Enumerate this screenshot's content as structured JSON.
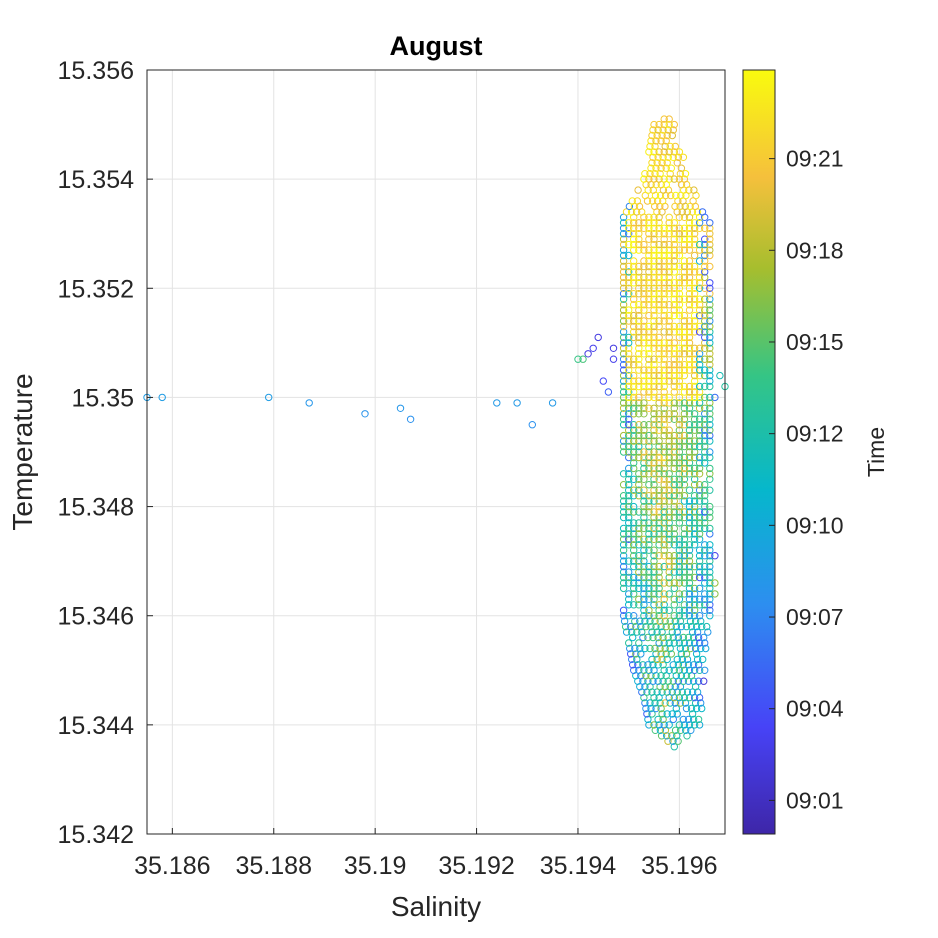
{
  "chart_data": {
    "type": "scatter",
    "title": "August",
    "xlabel": "Salinity",
    "ylabel": "Temperature",
    "xlim": [
      35.1855,
      35.1969
    ],
    "ylim": [
      15.342,
      15.356
    ],
    "grid": true,
    "x_ticks": [
      "35.186",
      "35.188",
      "35.19",
      "35.192",
      "35.194",
      "35.196"
    ],
    "y_ticks": [
      "15.342",
      "15.344",
      "15.346",
      "15.348",
      "15.35",
      "15.352",
      "15.354",
      "15.356"
    ],
    "colorbar": {
      "label": "Time",
      "tick_labels": [
        "09:01",
        "09:04",
        "09:07",
        "09:10",
        "09:12",
        "09:15",
        "09:18",
        "09:21"
      ],
      "colormap": "parula",
      "colors": [
        "#3e26a8",
        "#4743f7",
        "#2d8ef0",
        "#06b7cc",
        "#35c585",
        "#a6be2e",
        "#f5c03c",
        "#f9fb0e"
      ]
    },
    "outliers": [
      {
        "x": 35.1855,
        "y": 15.35,
        "t": 0.35
      },
      {
        "x": 35.1858,
        "y": 15.35,
        "t": 0.35
      },
      {
        "x": 35.1879,
        "y": 15.35,
        "t": 0.35
      },
      {
        "x": 35.1887,
        "y": 15.3499,
        "t": 0.33
      },
      {
        "x": 35.1898,
        "y": 15.3497,
        "t": 0.32
      },
      {
        "x": 35.1905,
        "y": 15.3498,
        "t": 0.33
      },
      {
        "x": 35.1907,
        "y": 15.3496,
        "t": 0.31
      },
      {
        "x": 35.1924,
        "y": 15.3499,
        "t": 0.34
      },
      {
        "x": 35.1928,
        "y": 15.3499,
        "t": 0.34
      },
      {
        "x": 35.1931,
        "y": 15.3495,
        "t": 0.31
      },
      {
        "x": 35.1935,
        "y": 15.3499,
        "t": 0.34
      },
      {
        "x": 35.194,
        "y": 15.3507,
        "t": 0.6
      },
      {
        "x": 35.1941,
        "y": 15.3507,
        "t": 0.62
      },
      {
        "x": 35.1942,
        "y": 15.3508,
        "t": 0.1
      },
      {
        "x": 35.1943,
        "y": 15.3509,
        "t": 0.12
      },
      {
        "x": 35.1944,
        "y": 15.3511,
        "t": 0.1
      },
      {
        "x": 35.1945,
        "y": 15.3503,
        "t": 0.15
      },
      {
        "x": 35.1946,
        "y": 15.3501,
        "t": 0.2
      },
      {
        "x": 35.1947,
        "y": 15.3507,
        "t": 0.12
      },
      {
        "x": 35.1947,
        "y": 15.3509,
        "t": 0.1
      },
      {
        "x": 35.1969,
        "y": 15.3502,
        "t": 0.55
      },
      {
        "x": 35.1968,
        "y": 15.3504,
        "t": 0.5
      },
      {
        "x": 35.1967,
        "y": 15.3471,
        "t": 0.12
      },
      {
        "x": 35.1967,
        "y": 15.3466,
        "t": 0.72
      },
      {
        "x": 35.1967,
        "y": 15.3464,
        "t": 0.7
      }
    ],
    "cluster": {
      "x_range": [
        35.1948,
        35.1966
      ],
      "y_range": [
        15.3436,
        15.3551
      ],
      "dx": 0.0001,
      "dy": 0.0001,
      "envelope": [
        {
          "y": 15.3436,
          "x0": 35.1959,
          "x1": 35.1959
        },
        {
          "y": 15.344,
          "x0": 35.1954,
          "x1": 35.1964
        },
        {
          "y": 15.3445,
          "x0": 35.1953,
          "x1": 35.1965
        },
        {
          "y": 15.345,
          "x0": 35.1951,
          "x1": 35.1965
        },
        {
          "y": 15.346,
          "x0": 35.1949,
          "x1": 35.1966
        },
        {
          "y": 15.348,
          "x0": 35.1949,
          "x1": 35.1966
        },
        {
          "y": 15.35,
          "x0": 35.1949,
          "x1": 35.1967
        },
        {
          "y": 15.352,
          "x0": 35.1949,
          "x1": 35.1966
        },
        {
          "y": 15.3533,
          "x0": 35.1949,
          "x1": 35.1966
        },
        {
          "y": 15.354,
          "x0": 35.1953,
          "x1": 35.1962
        },
        {
          "y": 15.355,
          "x0": 35.1955,
          "x1": 35.1959
        },
        {
          "y": 15.3551,
          "x0": 35.1956,
          "x1": 35.1958
        }
      ]
    }
  }
}
